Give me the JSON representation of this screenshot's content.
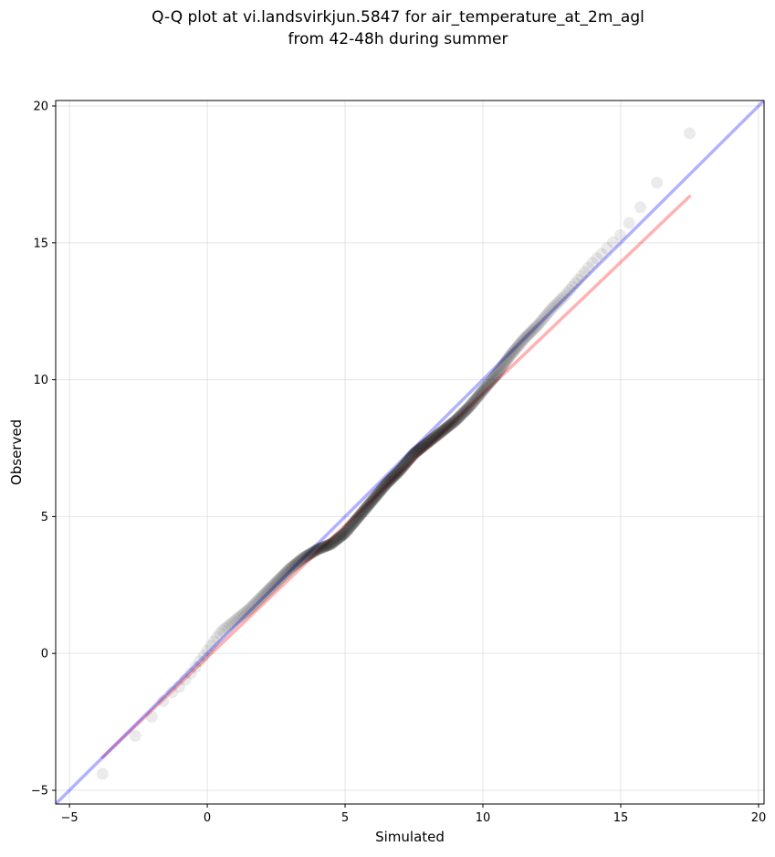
{
  "chart_data": {
    "type": "scatter",
    "title_lines": [
      "Q-Q plot at vi.landsvirkjun.5847 for air_temperature_at_2m_agl",
      "from 42-48h during summer"
    ],
    "xlabel": "Simulated",
    "ylabel": "Observed",
    "xlim": [
      -5.5,
      20.2
    ],
    "ylim": [
      -5.5,
      20.2
    ],
    "xticks": [
      -5,
      0,
      5,
      10,
      15,
      20
    ],
    "yticks": [
      -5,
      0,
      5,
      10,
      15,
      20
    ],
    "grid": true,
    "reference_line": {
      "color": "#0000ff",
      "opacity": 0.3,
      "x": [
        -5.5,
        20.2
      ],
      "y": [
        -5.5,
        20.2
      ]
    },
    "fit_line": {
      "color": "#ff0000",
      "opacity": 0.3,
      "x": [
        -3.8,
        17.5
      ],
      "y": [
        -3.8,
        16.7
      ]
    },
    "quantile_anchors": {
      "simulated": [
        -3.8,
        -3.5,
        -3.0,
        -2.5,
        -2.0,
        -1.5,
        -1.0,
        -0.5,
        0.0,
        0.5,
        1.0,
        1.5,
        2.0,
        2.5,
        3.0,
        3.5,
        4.0,
        4.5,
        5.0,
        5.5,
        6.0,
        6.5,
        7.0,
        7.5,
        8.0,
        8.5,
        9.0,
        9.5,
        10.0,
        10.5,
        11.0,
        11.5,
        12.0,
        12.5,
        13.0,
        13.5,
        14.0,
        14.5,
        15.0,
        15.5,
        16.0,
        16.5,
        17.0,
        17.5
      ],
      "observed": [
        -4.4,
        -4.0,
        -3.4,
        -2.9,
        -2.3,
        -1.6,
        -1.2,
        -0.6,
        0.1,
        0.8,
        1.2,
        1.6,
        2.1,
        2.6,
        3.1,
        3.5,
        3.8,
        4.0,
        4.4,
        5.0,
        5.6,
        6.2,
        6.7,
        7.3,
        7.7,
        8.1,
        8.5,
        9.0,
        9.6,
        10.2,
        10.9,
        11.5,
        12.0,
        12.6,
        13.1,
        13.7,
        14.3,
        14.8,
        15.3,
        16.0,
        16.7,
        17.5,
        18.2,
        19.0
      ]
    },
    "point_color": "#000000",
    "point_count": 480
  }
}
